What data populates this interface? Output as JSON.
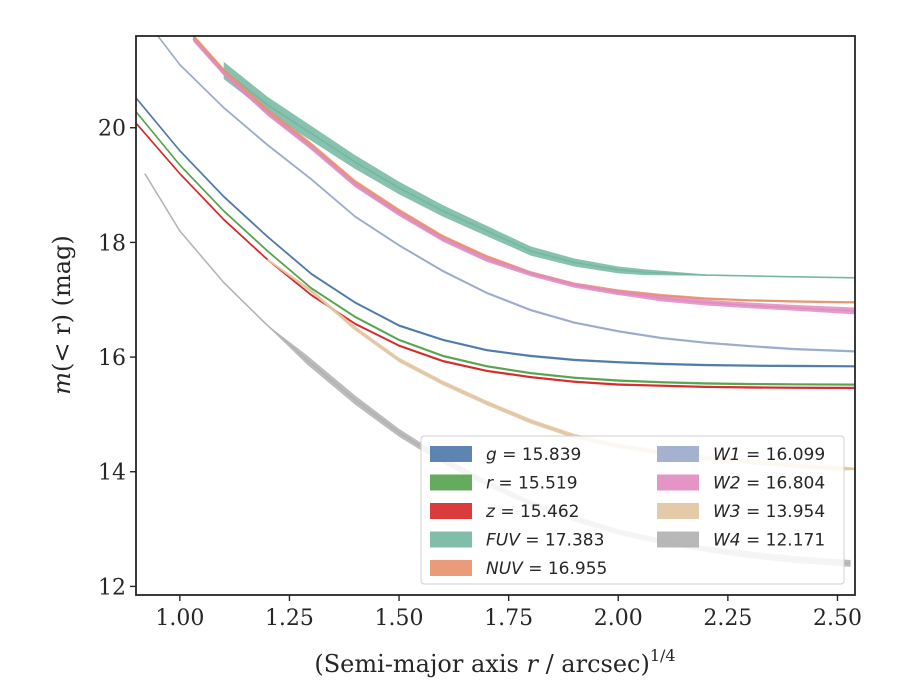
{
  "chart_data": {
    "type": "line",
    "xlabel_main": "(Semi-major axis",
    "xlabel_var": "r",
    "xlabel_unit": "/ arcsec)",
    "xlabel_sup": "1/4",
    "ylabel_var": "m",
    "ylabel_arg": "(< r)",
    "ylabel_unit": "(mag)",
    "xlim": [
      0.9,
      2.54
    ],
    "ylim": [
      21.6,
      11.85
    ],
    "y_inverted": true,
    "xticks": [
      1.0,
      1.25,
      1.5,
      1.75,
      2.0,
      2.25,
      2.5
    ],
    "xtick_labels": [
      "1.00",
      "1.25",
      "1.50",
      "1.75",
      "2.00",
      "2.25",
      "2.50"
    ],
    "yticks": [
      12,
      14,
      16,
      18,
      20
    ],
    "ytick_labels": [
      "12",
      "14",
      "16",
      "18",
      "20"
    ],
    "grid": false,
    "legend_position": "lower-right",
    "series": [
      {
        "name": "g = 15.839",
        "band": "g",
        "value": "15.839",
        "color": "#4c78a8",
        "x": [
          0.9,
          1.0,
          1.1,
          1.2,
          1.3,
          1.4,
          1.5,
          1.6,
          1.7,
          1.8,
          1.9,
          2.0,
          2.1,
          2.2,
          2.3,
          2.4,
          2.54
        ],
        "y": [
          20.52,
          19.6,
          18.8,
          18.1,
          17.45,
          16.95,
          16.55,
          16.3,
          16.12,
          16.02,
          15.95,
          15.91,
          15.88,
          15.86,
          15.85,
          15.845,
          15.839
        ],
        "err": [
          0.02,
          0.02,
          0.02,
          0.02,
          0.02,
          0.02,
          0.02,
          0.02,
          0.02,
          0.02,
          0.02,
          0.02,
          0.02,
          0.02,
          0.02,
          0.02,
          0.02
        ]
      },
      {
        "name": "r = 15.519",
        "band": "r",
        "value": "15.519",
        "color": "#54a24b",
        "x": [
          0.9,
          1.0,
          1.1,
          1.2,
          1.3,
          1.4,
          1.5,
          1.6,
          1.7,
          1.8,
          1.9,
          2.0,
          2.1,
          2.2,
          2.3,
          2.4,
          2.54
        ],
        "y": [
          20.28,
          19.35,
          18.55,
          17.85,
          17.2,
          16.7,
          16.3,
          16.02,
          15.84,
          15.72,
          15.64,
          15.59,
          15.56,
          15.54,
          15.53,
          15.525,
          15.519
        ],
        "err": [
          0.02,
          0.02,
          0.02,
          0.02,
          0.02,
          0.02,
          0.02,
          0.02,
          0.02,
          0.02,
          0.02,
          0.02,
          0.02,
          0.02,
          0.02,
          0.02,
          0.02
        ]
      },
      {
        "name": "z = 15.462",
        "band": "z",
        "value": "15.462",
        "color": "#d62728",
        "x": [
          0.9,
          1.0,
          1.1,
          1.2,
          1.3,
          1.4,
          1.5,
          1.6,
          1.7,
          1.8,
          1.9,
          2.0,
          2.1,
          2.2,
          2.3,
          2.4,
          2.54
        ],
        "y": [
          20.08,
          19.2,
          18.4,
          17.7,
          17.08,
          16.58,
          16.2,
          15.93,
          15.76,
          15.65,
          15.57,
          15.52,
          15.5,
          15.48,
          15.47,
          15.465,
          15.462
        ],
        "err": [
          0.02,
          0.02,
          0.02,
          0.02,
          0.02,
          0.02,
          0.02,
          0.02,
          0.02,
          0.02,
          0.02,
          0.02,
          0.02,
          0.02,
          0.02,
          0.02,
          0.02
        ]
      },
      {
        "name": "FUV = 17.383",
        "band": "FUV",
        "value": "17.383",
        "color": "#72b7a0",
        "x": [
          1.1,
          1.2,
          1.3,
          1.4,
          1.5,
          1.6,
          1.7,
          1.8,
          1.9,
          2.0,
          2.06,
          2.2,
          2.4,
          2.54
        ],
        "y": [
          21.0,
          20.4,
          19.9,
          19.4,
          18.95,
          18.55,
          18.2,
          17.85,
          17.65,
          17.52,
          17.48,
          17.43,
          17.4,
          17.383
        ],
        "err": [
          0.15,
          0.14,
          0.13,
          0.12,
          0.11,
          0.1,
          0.09,
          0.08,
          0.07,
          0.06,
          0.05,
          0.01,
          0.01,
          0.01
        ]
      },
      {
        "name": "NUV = 16.955",
        "band": "NUV",
        "value": "16.955",
        "color": "#e8916b",
        "x": [
          1.03,
          1.1,
          1.2,
          1.3,
          1.4,
          1.5,
          1.6,
          1.7,
          1.8,
          1.9,
          2.0,
          2.1,
          2.2,
          2.3,
          2.4,
          2.54
        ],
        "y": [
          21.6,
          21.0,
          20.3,
          19.7,
          19.05,
          18.55,
          18.1,
          17.75,
          17.47,
          17.27,
          17.15,
          17.07,
          17.02,
          16.99,
          16.97,
          16.955
        ],
        "err": [
          0.04,
          0.04,
          0.04,
          0.04,
          0.04,
          0.04,
          0.03,
          0.03,
          0.03,
          0.03,
          0.03,
          0.03,
          0.02,
          0.02,
          0.02,
          0.02
        ]
      },
      {
        "name": "W1 = 16.099",
        "band": "W1",
        "value": "16.099",
        "color": "#9aaacb",
        "x": [
          0.95,
          1.0,
          1.1,
          1.2,
          1.3,
          1.4,
          1.5,
          1.6,
          1.7,
          1.8,
          1.9,
          2.0,
          2.1,
          2.2,
          2.3,
          2.4,
          2.54
        ],
        "y": [
          21.6,
          21.1,
          20.35,
          19.7,
          19.1,
          18.45,
          17.95,
          17.5,
          17.12,
          16.82,
          16.6,
          16.45,
          16.33,
          16.25,
          16.19,
          16.14,
          16.099
        ],
        "err": [
          0.02,
          0.02,
          0.02,
          0.02,
          0.02,
          0.02,
          0.02,
          0.02,
          0.02,
          0.02,
          0.02,
          0.02,
          0.02,
          0.02,
          0.02,
          0.02,
          0.02
        ]
      },
      {
        "name": "W2 = 16.804",
        "band": "W2",
        "value": "16.804",
        "color": "#e08bbf",
        "x": [
          1.03,
          1.1,
          1.2,
          1.3,
          1.4,
          1.5,
          1.6,
          1.7,
          1.8,
          1.9,
          2.0,
          2.1,
          2.2,
          2.3,
          2.4,
          2.54
        ],
        "y": [
          21.55,
          20.95,
          20.25,
          19.65,
          19.0,
          18.5,
          18.05,
          17.7,
          17.45,
          17.25,
          17.12,
          17.02,
          16.95,
          16.9,
          16.86,
          16.804
        ],
        "err": [
          0.04,
          0.04,
          0.04,
          0.04,
          0.04,
          0.04,
          0.04,
          0.04,
          0.04,
          0.04,
          0.04,
          0.05,
          0.05,
          0.05,
          0.05,
          0.06
        ]
      },
      {
        "name": "W3 = 13.954",
        "band": "W3",
        "value": "13.954",
        "color": "#e2c4a0",
        "x": [
          1.2,
          1.3,
          1.4,
          1.5,
          1.6,
          1.7,
          1.8,
          1.9,
          2.0,
          2.1,
          2.2,
          2.3,
          2.4,
          2.5,
          2.54
        ],
        "y": [
          17.7,
          17.15,
          16.5,
          15.95,
          15.55,
          15.2,
          14.88,
          14.62,
          14.45,
          14.33,
          14.24,
          14.17,
          14.11,
          14.06,
          14.05
        ],
        "err": [
          0.02,
          0.03,
          0.04,
          0.04,
          0.04,
          0.04,
          0.04,
          0.04,
          0.04,
          0.04,
          0.04,
          0.04,
          0.04,
          0.04,
          0.02
        ]
      },
      {
        "name": "W4 = 12.171",
        "band": "W4",
        "value": "12.171",
        "color": "#b0b0b0",
        "x": [
          0.92,
          1.0,
          1.1,
          1.2,
          1.29,
          1.4,
          1.5,
          1.6,
          1.7,
          1.8,
          1.9,
          2.0,
          2.1,
          2.2,
          2.3,
          2.4,
          2.53
        ],
        "y": [
          19.2,
          18.2,
          17.3,
          16.55,
          15.95,
          15.25,
          14.68,
          14.2,
          13.8,
          13.45,
          13.18,
          12.95,
          12.78,
          12.65,
          12.55,
          12.47,
          12.4
        ],
        "err": [
          0.01,
          0.01,
          0.01,
          0.01,
          0.08,
          0.08,
          0.07,
          0.06,
          0.05,
          0.05,
          0.05,
          0.05,
          0.05,
          0.05,
          0.06,
          0.06,
          0.06
        ]
      }
    ]
  }
}
